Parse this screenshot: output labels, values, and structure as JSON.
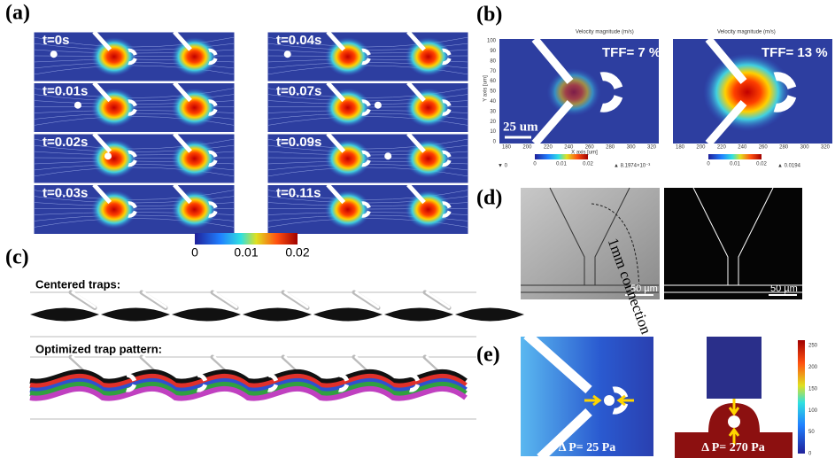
{
  "panels": {
    "a": {
      "label": "(a)",
      "times_left": [
        "t=0s",
        "t=0.01s",
        "t=0.02s",
        "t=0.03s"
      ],
      "times_right": [
        "t=0.04s",
        "t=0.07s",
        "t=0.09s",
        "t=0.11s"
      ],
      "colorbar": [
        "0",
        "0.01",
        "0.02"
      ]
    },
    "b": {
      "label": "(b)",
      "plot_title": "Velocity magnitude (m/s)",
      "y_axis": "Y axis [um]",
      "x_axis": "X axis [um]",
      "y_ticks": [
        "0",
        "10",
        "20",
        "30",
        "40",
        "50",
        "60",
        "70",
        "80",
        "90",
        "100"
      ],
      "x_ticks": [
        "180",
        "200",
        "220",
        "240",
        "260",
        "280",
        "300",
        "320"
      ],
      "left": {
        "annotation": "TFF= 7 %",
        "scale_bar": "25 um",
        "min": "▼ 0",
        "max": "▲ 8.1974×10⁻³",
        "colorbar": [
          "0",
          "0.01",
          "0.02"
        ]
      },
      "right": {
        "annotation": "TFF= 13 %",
        "max": "▲ 0.0194",
        "colorbar": [
          "0",
          "0.01",
          "0.02"
        ]
      }
    },
    "c": {
      "label": "(c)",
      "top": "Centered traps:",
      "bottom": "Optimized trap pattern:"
    },
    "d": {
      "label": "(d)",
      "connection": "1mm connection",
      "scale_left": "50 µm",
      "scale_right": "50 µm"
    },
    "e": {
      "label": "(e)",
      "left": "Δ P= 25 Pa",
      "right": "Δ P= 270 Pa",
      "colorbar": [
        "250",
        "200",
        "150",
        "100",
        "50",
        "0"
      ]
    }
  }
}
